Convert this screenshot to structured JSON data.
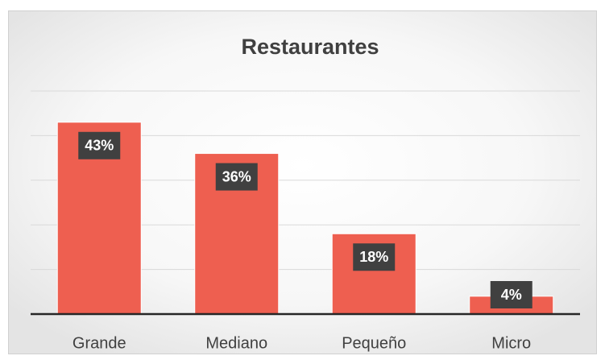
{
  "chart_data": {
    "type": "bar",
    "title": "Restaurantes",
    "categories": [
      "Grande",
      "Mediano",
      "Pequeño",
      "Micro"
    ],
    "values": [
      43,
      36,
      18,
      4
    ],
    "value_labels": [
      "43%",
      "36%",
      "18%",
      "4%"
    ],
    "color": "#ee5f50",
    "ylim": [
      0,
      50
    ],
    "yticks": [
      0,
      10,
      20,
      30,
      40,
      50
    ],
    "grid": true
  }
}
